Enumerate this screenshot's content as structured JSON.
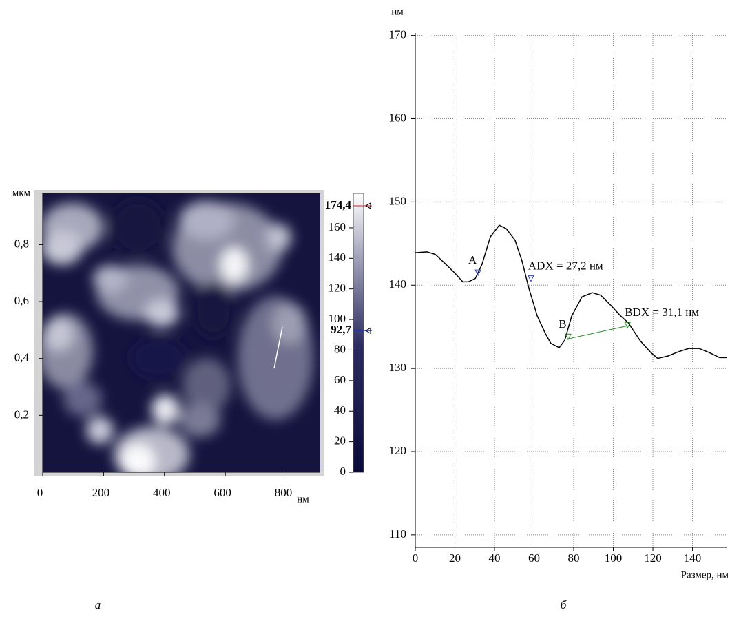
{
  "chart_data": [
    {
      "type": "heatmap",
      "xlabel": "нм",
      "ylabel": "мкм",
      "panel_label": "а",
      "xlim": [
        0,
        912
      ],
      "xticks": [
        0,
        200,
        400,
        600,
        800
      ],
      "ylim": [
        0,
        0.98
      ],
      "yticks": [
        {
          "value": 0.2,
          "label": "0,2"
        },
        {
          "value": 0.4,
          "label": "0,4"
        },
        {
          "value": 0.6,
          "label": "0,6"
        },
        {
          "value": 0.8,
          "label": "0,8"
        }
      ],
      "colorbar": {
        "lim": [
          0,
          182.5
        ],
        "ticks": [
          0,
          20,
          40,
          60,
          80,
          100,
          120,
          140,
          160
        ],
        "markers": [
          {
            "value": 174.4,
            "label": "174,4",
            "color": "#cc2222"
          },
          {
            "value": 92.7,
            "label": "92,7",
            "color": "#2233aa"
          }
        ]
      }
    },
    {
      "type": "line",
      "ylabel": "нм",
      "xlabel": "Размер, нм",
      "panel_label": "б",
      "grid": true,
      "xlim": [
        0,
        157.2
      ],
      "xticks": [
        0,
        20,
        40,
        60,
        80,
        100,
        120,
        140
      ],
      "ylim": [
        108.5,
        170.3
      ],
      "yticks": [
        110,
        120,
        130,
        140,
        150,
        160,
        170
      ],
      "x": [
        0,
        5.9,
        10.1,
        14.6,
        19.8,
        24,
        26.8,
        30.3,
        33.7,
        37.9,
        42.4,
        45.9,
        50.4,
        53.9,
        57.4,
        61.6,
        65.7,
        68.5,
        72.7,
        75.5,
        79,
        84.2,
        89.4,
        93.6,
        99.1,
        103.3,
        107.5,
        113.7,
        119,
        122.4,
        127.7,
        132.9,
        138.1,
        143.3,
        148.5,
        153.7,
        157.2
      ],
      "series": [
        {
          "color": "#000000",
          "values": [
            143.9,
            144.0,
            143.7,
            142.7,
            141.5,
            140.4,
            140.4,
            140.8,
            142.5,
            145.8,
            147.2,
            146.8,
            145.4,
            142.9,
            139.6,
            136.3,
            134.2,
            133.0,
            132.5,
            133.4,
            136.3,
            138.6,
            139.1,
            138.8,
            137.5,
            136.4,
            135.5,
            133.3,
            131.9,
            131.2,
            131.5,
            132.0,
            132.4,
            132.4,
            131.9,
            131.3,
            131.3
          ]
        }
      ],
      "annotations": [
        {
          "text": "A",
          "x": 31.7,
          "y": 141.5,
          "color": "#3344bb"
        },
        {
          "text": "ADX = 27,2 нм",
          "x": 58.4,
          "y": 140.8,
          "color": "#3344bb"
        },
        {
          "text": "B",
          "x": 77.2,
          "y": 133.8,
          "color": "#228822"
        },
        {
          "text": "BDX = 31,1 нм",
          "x": 107.2,
          "y": 135.2,
          "color": "#228822"
        }
      ]
    }
  ]
}
